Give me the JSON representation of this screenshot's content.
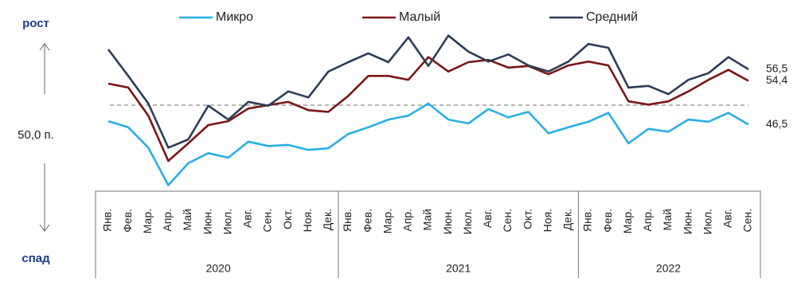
{
  "chart_data": {
    "type": "line",
    "categories": [
      "Янв.",
      "Фев.",
      "Мар.",
      "Апр.",
      "Май",
      "Июн.",
      "Июл.",
      "Авг.",
      "Сен.",
      "Окт.",
      "Ноя.",
      "Дек.",
      "Янв.",
      "Фев.",
      "Мар.",
      "Апр.",
      "Май",
      "Июн.",
      "Июл.",
      "Авг.",
      "Сен.",
      "Окт.",
      "Ноя.",
      "Дек.",
      "Янв.",
      "Фев.",
      "Мар.",
      "Апр.",
      "Май",
      "Июн.",
      "Июл.",
      "Авг.",
      "Сен."
    ],
    "years": [
      "2020",
      "2021",
      "2022"
    ],
    "annotations": {
      "up": "рост",
      "down": "спад"
    },
    "reference": {
      "value": 50,
      "label": "50,0 п."
    },
    "ylim": [
      35,
      64
    ],
    "series": [
      {
        "name": "Микро",
        "color": "#2aaee6",
        "values": [
          47.1,
          46.0,
          42.3,
          35.5,
          39.5,
          41.3,
          40.5,
          43.4,
          42.6,
          42.8,
          41.9,
          42.2,
          44.8,
          46.0,
          47.4,
          48.1,
          50.3,
          47.4,
          46.7,
          49.3,
          47.8,
          48.8,
          44.9,
          46.0,
          47.0,
          48.6,
          43.1,
          45.7,
          45.2,
          47.4,
          47.0,
          48.6,
          46.5
        ],
        "value_labels": [
          null,
          null,
          null,
          null,
          null,
          null,
          null,
          null,
          null,
          null,
          null,
          null,
          null,
          null,
          null,
          null,
          null,
          null,
          null,
          null,
          null,
          null,
          null,
          null,
          null,
          null,
          null,
          null,
          null,
          null,
          null,
          null,
          "46,5"
        ]
      },
      {
        "name": "Малый",
        "color": "#7b1518",
        "values": [
          53.9,
          53.2,
          48.1,
          39.9,
          43.1,
          46.4,
          47.1,
          49.4,
          50.0,
          50.6,
          49.1,
          48.8,
          51.7,
          55.3,
          55.3,
          54.6,
          58.7,
          56.1,
          57.8,
          58.2,
          56.8,
          57.1,
          55.6,
          57.2,
          57.9,
          57.2,
          50.7,
          50.1,
          50.7,
          52.5,
          54.6,
          56.4,
          54.4
        ],
        "value_labels": [
          null,
          null,
          null,
          null,
          null,
          null,
          null,
          null,
          null,
          null,
          null,
          null,
          null,
          null,
          null,
          null,
          null,
          null,
          null,
          null,
          null,
          null,
          null,
          null,
          null,
          null,
          null,
          null,
          null,
          null,
          null,
          null,
          "54,4"
        ]
      },
      {
        "name": "Средний",
        "color": "#2e3d56",
        "values": [
          60.1,
          55.3,
          50.3,
          42.3,
          43.8,
          49.9,
          47.4,
          50.6,
          49.9,
          52.5,
          51.4,
          56.1,
          57.8,
          59.4,
          57.8,
          62.3,
          57.1,
          62.6,
          59.7,
          57.9,
          59.2,
          57.2,
          56.1,
          57.9,
          61.1,
          60.4,
          53.2,
          53.5,
          52.0,
          54.6,
          55.8,
          58.7,
          56.5
        ],
        "value_labels": [
          null,
          null,
          null,
          null,
          null,
          null,
          null,
          null,
          null,
          null,
          null,
          null,
          null,
          null,
          null,
          null,
          null,
          null,
          null,
          null,
          null,
          null,
          null,
          null,
          null,
          null,
          null,
          null,
          null,
          null,
          null,
          null,
          "56,5"
        ]
      }
    ]
  }
}
